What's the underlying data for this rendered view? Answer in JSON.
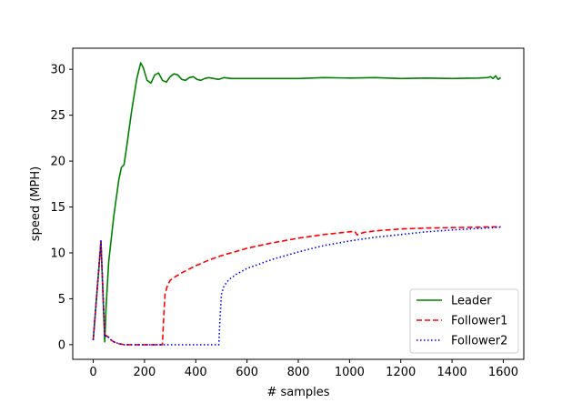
{
  "chart_data": {
    "type": "line",
    "title": "",
    "xlabel": "# samples",
    "ylabel": "speed (MPH)",
    "xlim": [
      -80,
      1680
    ],
    "ylim": [
      -1.6,
      32.3
    ],
    "xticks": [
      0,
      200,
      400,
      600,
      800,
      1000,
      1200,
      1400,
      1600
    ],
    "yticks": [
      0,
      5,
      10,
      15,
      20,
      25,
      30
    ],
    "grid": false,
    "legend_position": "bottom-right",
    "series": [
      {
        "name": "Leader",
        "color": "#008000",
        "dash": "solid",
        "x": [
          0,
          30,
          45,
          50,
          60,
          80,
          100,
          110,
          120,
          130,
          150,
          170,
          185,
          195,
          210,
          225,
          240,
          255,
          270,
          285,
          300,
          315,
          330,
          345,
          360,
          375,
          390,
          405,
          420,
          435,
          450,
          470,
          490,
          510,
          540,
          570,
          600,
          700,
          800,
          900,
          1000,
          1100,
          1200,
          1300,
          1400,
          1500,
          1540,
          1550,
          1560,
          1570,
          1580,
          1590
        ],
        "y": [
          0.5,
          11.2,
          0.3,
          4,
          9,
          14,
          18,
          19.3,
          19.6,
          21.5,
          25.5,
          29,
          30.7,
          30.2,
          28.8,
          28.5,
          29.4,
          29.6,
          28.8,
          28.6,
          29.2,
          29.5,
          29.4,
          28.9,
          28.8,
          29.1,
          29.2,
          28.9,
          28.8,
          29,
          29.1,
          29,
          28.9,
          29.1,
          29,
          29,
          29,
          29,
          29,
          29.1,
          29.05,
          29.1,
          29,
          29.05,
          29,
          29.05,
          29.1,
          29.2,
          29,
          29.3,
          28.9,
          29.1
        ]
      },
      {
        "name": "Follower1",
        "color": "#ff0000",
        "dash": "dashed",
        "x": [
          0,
          30,
          45,
          50,
          60,
          70,
          80,
          100,
          120,
          150,
          200,
          250,
          270,
          275,
          280,
          290,
          300,
          320,
          350,
          400,
          450,
          500,
          600,
          700,
          800,
          900,
          1000,
          1020,
          1030,
          1040,
          1060,
          1100,
          1200,
          1300,
          1400,
          1500,
          1590
        ],
        "y": [
          0.5,
          11.3,
          0.8,
          1.0,
          0.8,
          0.5,
          0.3,
          0.1,
          0,
          0,
          0,
          0,
          0,
          3,
          5.5,
          6.5,
          7,
          7.4,
          7.9,
          8.6,
          9.2,
          9.7,
          10.5,
          11.1,
          11.6,
          12,
          12.3,
          12.35,
          11.95,
          12.1,
          12.25,
          12.4,
          12.6,
          12.7,
          12.75,
          12.8,
          12.85
        ]
      },
      {
        "name": "Follower2",
        "color": "#0000ff",
        "dash": "dotted",
        "x": [
          0,
          30,
          45,
          50,
          60,
          70,
          80,
          100,
          120,
          150,
          200,
          300,
          400,
          490,
          495,
          500,
          510,
          530,
          560,
          600,
          700,
          800,
          900,
          1000,
          1100,
          1200,
          1300,
          1400,
          1500,
          1590
        ],
        "y": [
          0.5,
          11.3,
          0.8,
          1.0,
          0.8,
          0.5,
          0.3,
          0.1,
          0,
          0,
          0,
          0,
          0,
          0,
          3,
          5.5,
          6.4,
          7.1,
          7.7,
          8.3,
          9.3,
          10.1,
          10.8,
          11.3,
          11.7,
          12,
          12.3,
          12.5,
          12.65,
          12.8
        ]
      }
    ]
  }
}
